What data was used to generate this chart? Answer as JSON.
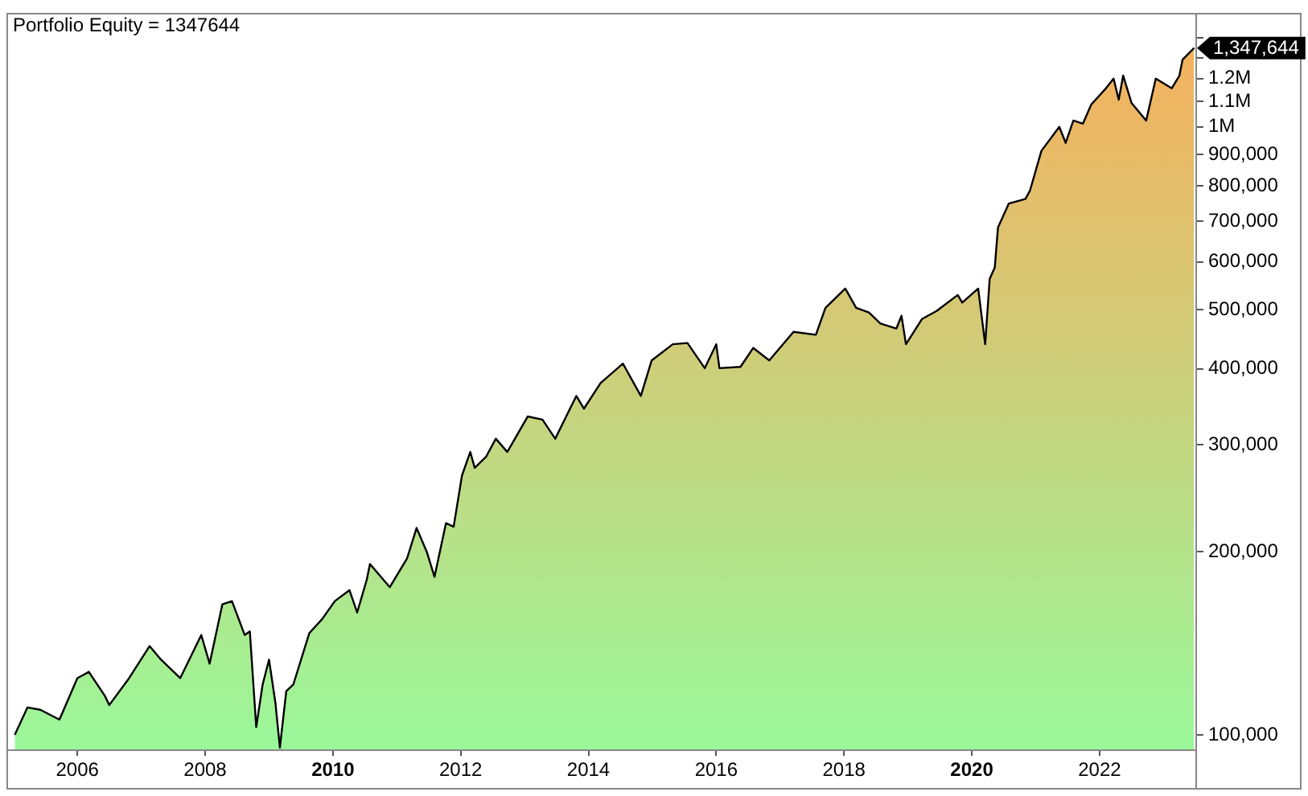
{
  "chart_data": {
    "type": "area",
    "title": "Portfolio Equity = 1347644",
    "x": [
      2005.02,
      2005.22,
      2005.42,
      2005.72,
      2006.0,
      2006.18,
      2006.43,
      2006.5,
      2006.81,
      2007.13,
      2007.31,
      2007.61,
      2007.94,
      2008.07,
      2008.27,
      2008.42,
      2008.62,
      2008.7,
      2008.8,
      2008.9,
      2009.0,
      2009.1,
      2009.17,
      2009.27,
      2009.38,
      2009.63,
      2009.83,
      2010.03,
      2010.26,
      2010.38,
      2010.53,
      2010.58,
      2010.89,
      2011.16,
      2011.31,
      2011.47,
      2011.59,
      2011.77,
      2011.89,
      2012.02,
      2012.15,
      2012.22,
      2012.4,
      2012.55,
      2012.73,
      2013.05,
      2013.28,
      2013.48,
      2013.81,
      2013.93,
      2014.19,
      2014.54,
      2014.82,
      2014.99,
      2015.32,
      2015.55,
      2015.82,
      2016.0,
      2016.05,
      2016.38,
      2016.58,
      2016.83,
      2017.06,
      2017.21,
      2017.56,
      2017.71,
      2018.02,
      2018.19,
      2018.39,
      2018.57,
      2018.82,
      2018.9,
      2018.97,
      2019.22,
      2019.45,
      2019.78,
      2019.85,
      2020.1,
      2020.21,
      2020.28,
      2020.36,
      2020.41,
      2020.58,
      2020.84,
      2020.91,
      2021.09,
      2021.37,
      2021.47,
      2021.59,
      2021.74,
      2021.87,
      2022.1,
      2022.22,
      2022.3,
      2022.37,
      2022.5,
      2022.73,
      2022.88,
      2023.13,
      2023.25,
      2023.3,
      2023.48
    ],
    "series": [
      {
        "color": "#000000",
        "values": [
          100000,
          111000,
          110000,
          106000,
          124000,
          127000,
          116000,
          112000,
          124000,
          140000,
          133000,
          124000,
          146000,
          131000,
          164000,
          166000,
          146000,
          148000,
          103000,
          121000,
          133000,
          113000,
          95300,
          118000,
          121000,
          147000,
          155000,
          166000,
          173000,
          159000,
          180000,
          191000,
          175000,
          195000,
          219000,
          200000,
          182000,
          223000,
          220000,
          267000,
          292000,
          275000,
          287000,
          307000,
          292000,
          334000,
          330000,
          307000,
          361000,
          344000,
          379000,
          408000,
          361000,
          413000,
          439000,
          441000,
          401000,
          439000,
          401000,
          403000,
          433000,
          413000,
          441000,
          460000,
          455000,
          504000,
          542000,
          504000,
          495000,
          475000,
          466000,
          489000,
          439000,
          483000,
          498000,
          529000,
          514000,
          542000,
          439000,
          562000,
          587000,
          683000,
          748000,
          761000,
          785000,
          913000,
          1000000,
          941000,
          1024000,
          1012000,
          1088000,
          1157000,
          1200000,
          1108000,
          1214000,
          1095000,
          1024000,
          1200000,
          1157000,
          1214000,
          1290000,
          1347644
        ]
      }
    ],
    "xlim": [
      2004.89,
      2023.5
    ],
    "xticks": [
      2006,
      2008,
      2010,
      2012,
      2014,
      2016,
      2018,
      2020,
      2022
    ],
    "ylim": [
      94700,
      1519000
    ],
    "yticks": [
      {
        "value": 100000,
        "label": "100,000"
      },
      {
        "value": 200000,
        "label": "200,000"
      },
      {
        "value": 300000,
        "label": "300,000"
      },
      {
        "value": 400000,
        "label": "400,000"
      },
      {
        "value": 500000,
        "label": "500,000"
      },
      {
        "value": 600000,
        "label": "600,000"
      },
      {
        "value": 700000,
        "label": "700,000"
      },
      {
        "value": 800000,
        "label": "800,000"
      },
      {
        "value": 900000,
        "label": "900,000"
      },
      {
        "value": 1000000,
        "label": "1M"
      },
      {
        "value": 1100000,
        "label": "1.1M"
      },
      {
        "value": 1200000,
        "label": "1.2M"
      },
      {
        "value": 1300000,
        "label": null
      },
      {
        "value": 1400000,
        "label": null
      }
    ],
    "log": "y",
    "grid": false,
    "legend": false,
    "annotations": [
      {
        "text": "1,347,644",
        "x": 2023.48,
        "y": 1347644
      }
    ]
  }
}
